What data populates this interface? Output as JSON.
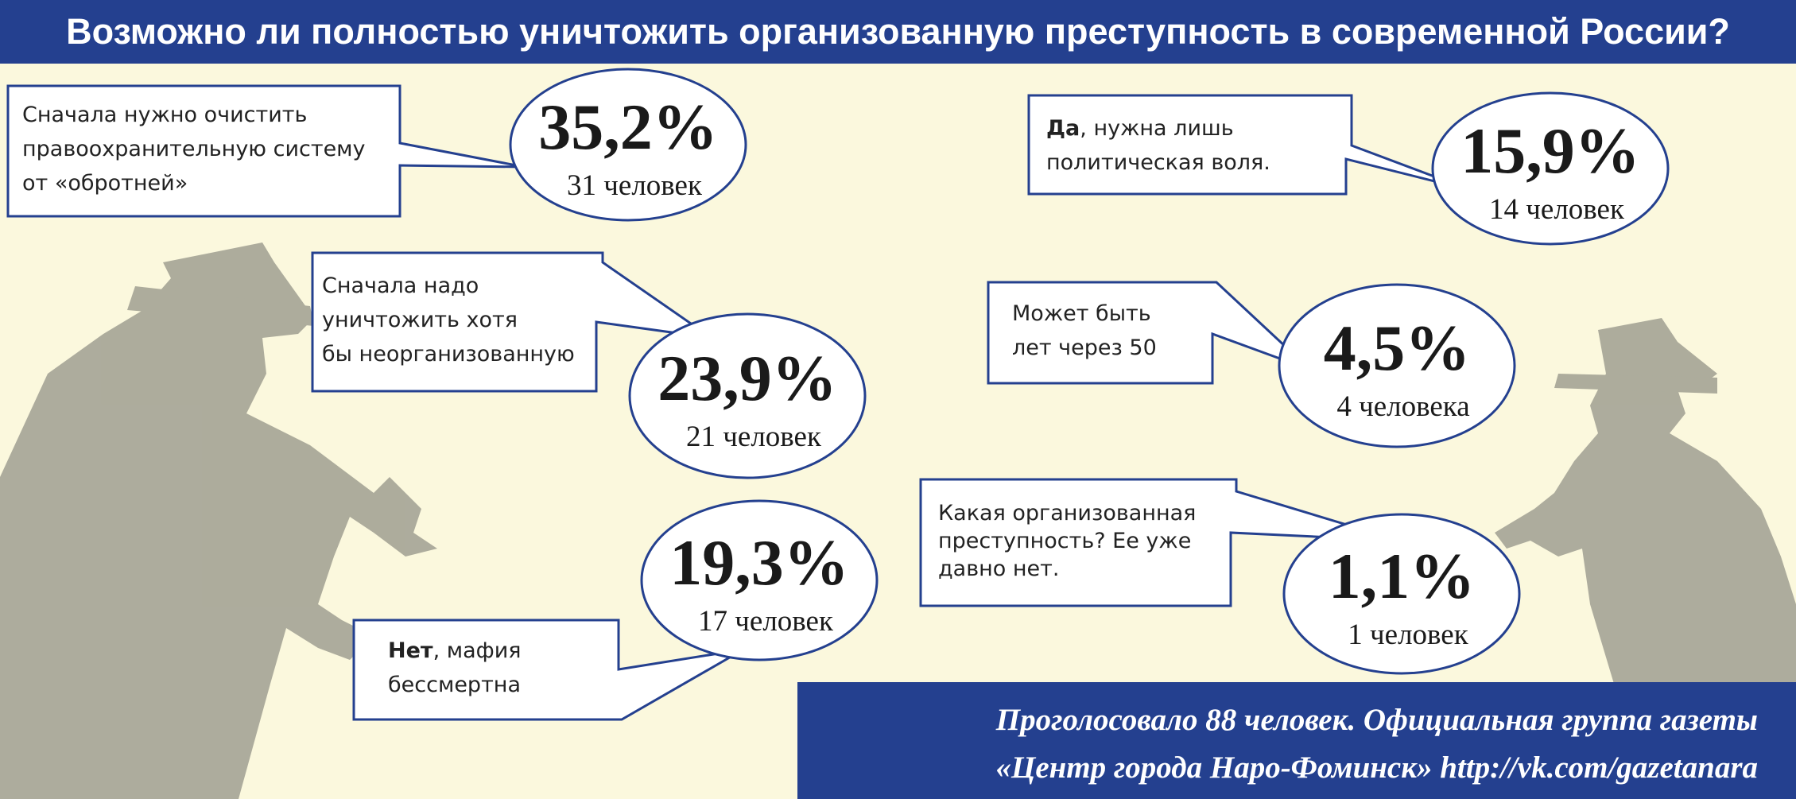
{
  "title": "Возможно ли полностью уничтожить организованную преступность в современной России?",
  "colors": {
    "header_bg": "#24408f",
    "background": "#fbf8dd",
    "outline": "#24408f",
    "silhouette": "#a9a899"
  },
  "chart_data": {
    "type": "bar",
    "categories": [
      "Сначала нужно очистить правоохранительную систему от «обротней»",
      "Сначала надо уничтожить хотя бы неорганизованную",
      "Нет, мафия бессмертна",
      "Да, нужна лишь политическая воля.",
      "Может быть лет через 50",
      "Какая организованная преступность? Ее уже давно нет."
    ],
    "values": [
      35.2,
      23.9,
      19.3,
      15.9,
      4.5,
      1.1
    ],
    "counts": [
      31,
      21,
      17,
      14,
      4,
      1
    ],
    "value_labels": [
      "35,2%",
      "23,9%",
      "19,3%",
      "15,9%",
      "4,5%",
      "1,1%"
    ],
    "count_labels": [
      "31 человек",
      "21 человек",
      "17 человек",
      "14 человек",
      "4 человека",
      "1 человек"
    ]
  },
  "answers": [
    {
      "lines": [
        "Сначала нужно очистить",
        "правоохранительную систему",
        "от «обротней»"
      ]
    },
    {
      "lines": [
        "Сначала надо",
        "уничтожить хотя",
        "бы неорганизованную"
      ]
    },
    {
      "bold": "Нет",
      "rest": ", мафия",
      "line2": "бессмертна"
    },
    {
      "bold": "Да",
      "rest": ", нужна лишь",
      "line2": "политическая воля."
    },
    {
      "lines": [
        "Может быть",
        "лет через 50"
      ]
    },
    {
      "lines": [
        "Какая организованная",
        "преступность? Ее уже",
        "давно нет."
      ]
    }
  ],
  "footer": {
    "line1": "Проголосовало 88 человек. Официальная группа газеты",
    "line2": "«Центр города Наро-Фоминск» http://vk.com/gazetanara"
  }
}
